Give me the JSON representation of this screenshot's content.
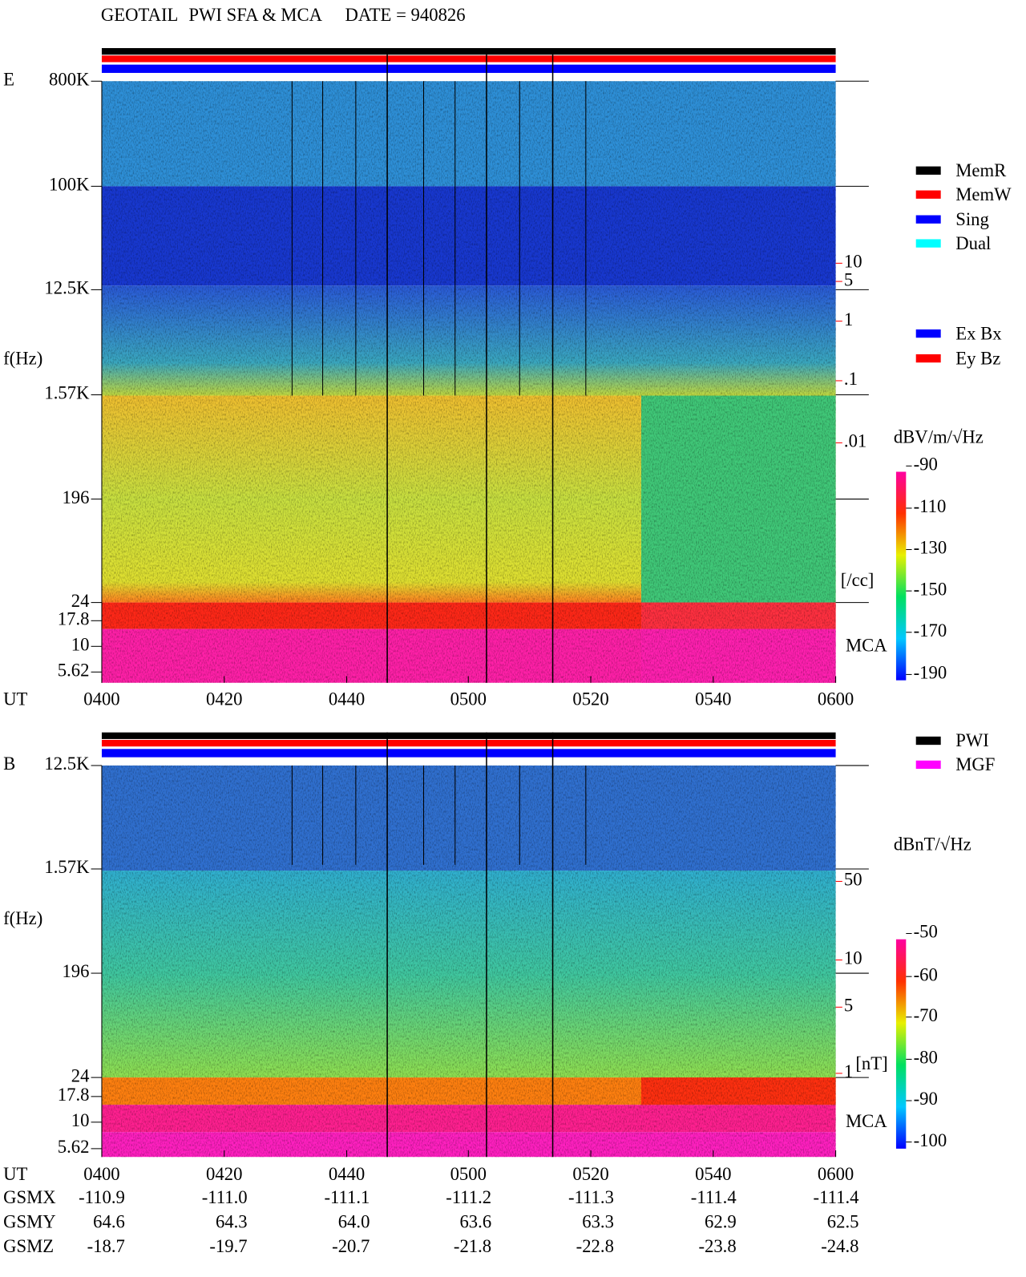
{
  "header": {
    "mission": "GEOTAIL",
    "instrument": "PWI SFA & MCA",
    "date": "DATE = 940826"
  },
  "panels": [
    {
      "label": "E",
      "y_label": "f(Hz)",
      "y_ticks": [
        "800K",
        "100K",
        "12.5K",
        "1.57K",
        "196",
        "24",
        "17.8",
        "10",
        "5.62"
      ],
      "right_ticks": [
        "10",
        "5",
        "1",
        ".1",
        ".01"
      ],
      "right_unit": "[/cc]",
      "mca": "MCA",
      "colorbar_unit": "dBV/m/√Hz",
      "colorbar_ticks": [
        -90,
        -110,
        -130,
        -150,
        -170,
        -190
      ]
    },
    {
      "label": "B",
      "y_label": "f(Hz)",
      "y_ticks": [
        "12.5K",
        "1.57K",
        "196",
        "24",
        "17.8",
        "10",
        "5.62"
      ],
      "right_ticks": [
        "50",
        "10",
        "5",
        "1"
      ],
      "right_unit": "[nT]",
      "mca": "MCA",
      "colorbar_unit": "dBnT/√Hz",
      "colorbar_ticks": [
        -50,
        -60,
        -70,
        -80,
        -90,
        -100
      ]
    }
  ],
  "x_axis": {
    "label": "UT",
    "ticks": [
      "0400",
      "0420",
      "0440",
      "0500",
      "0520",
      "0540",
      "0600"
    ]
  },
  "legend_memory": [
    {
      "label": "MemR",
      "color": "#000000"
    },
    {
      "label": "MemW",
      "color": "#ff0000"
    },
    {
      "label": "Sing",
      "color": "#0000ff"
    },
    {
      "label": "Dual",
      "color": "#00ffff"
    }
  ],
  "legend_component": [
    {
      "label": "Ex Bx",
      "color": "#0000ff"
    },
    {
      "label": "Ey Bz",
      "color": "#ff0000"
    }
  ],
  "legend_source": [
    {
      "label": "PWI",
      "color": "#000000"
    },
    {
      "label": "MGF",
      "color": "#ff00ff"
    }
  ],
  "orbit": [
    {
      "label": "GSMX",
      "values": [
        "-110.9",
        "-111.0",
        "-111.1",
        "-111.2",
        "-111.3",
        "-111.4",
        "-111.4"
      ]
    },
    {
      "label": "GSMY",
      "values": [
        "64.6",
        "64.3",
        "64.0",
        "63.6",
        "63.3",
        "62.9",
        "62.5"
      ]
    },
    {
      "label": "GSMZ",
      "values": [
        "-18.7",
        "-19.7",
        "-20.7",
        "-21.8",
        "-22.8",
        "-23.8",
        "-24.8"
      ]
    }
  ]
}
